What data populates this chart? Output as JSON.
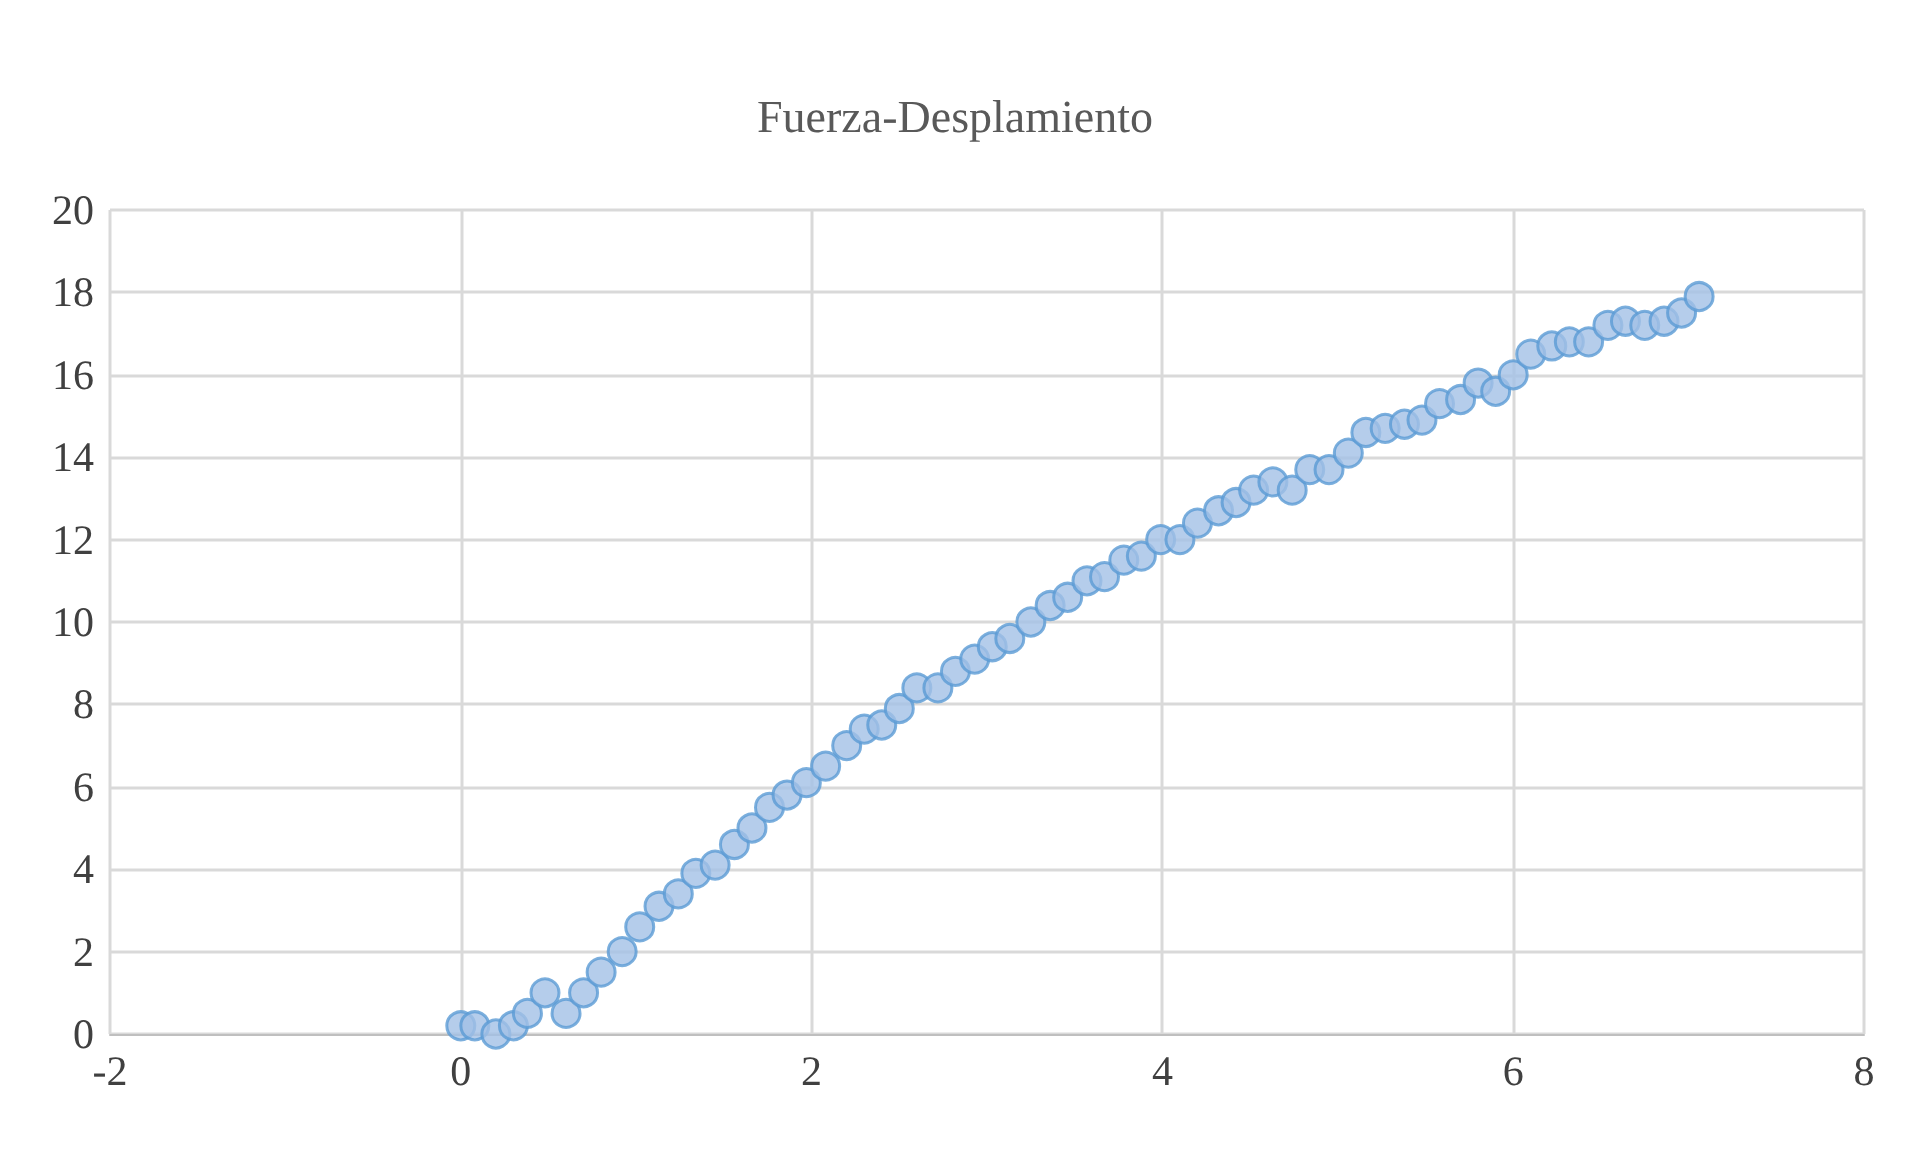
{
  "chart_data": {
    "type": "scatter",
    "title": "Fuerza-Desplamiento",
    "x": [
      0,
      0.08,
      0.2,
      0.3,
      0.38,
      0.48,
      0.6,
      0.7,
      0.8,
      0.92,
      1.02,
      1.13,
      1.24,
      1.34,
      1.45,
      1.56,
      1.66,
      1.76,
      1.86,
      1.97,
      2.08,
      2.2,
      2.3,
      2.4,
      2.5,
      2.6,
      2.72,
      2.82,
      2.93,
      3.03,
      3.13,
      3.25,
      3.36,
      3.46,
      3.57,
      3.67,
      3.78,
      3.88,
      3.99,
      4.1,
      4.2,
      4.32,
      4.42,
      4.52,
      4.63,
      4.74,
      4.84,
      4.95,
      5.06,
      5.16,
      5.27,
      5.38,
      5.48,
      5.58,
      5.7,
      5.8,
      5.9,
      6.0,
      6.1,
      6.22,
      6.32,
      6.43,
      6.54,
      6.64,
      6.75,
      6.86,
      6.96,
      7.06
    ],
    "values": [
      0.2,
      0.2,
      0,
      0.2,
      0.5,
      1.0,
      0.5,
      1.0,
      1.5,
      2.0,
      2.6,
      3.1,
      3.4,
      3.9,
      4.1,
      4.6,
      5.0,
      5.5,
      5.8,
      6.1,
      6.5,
      7.0,
      7.4,
      7.5,
      7.9,
      8.4,
      8.4,
      8.8,
      9.1,
      9.4,
      9.6,
      10.0,
      10.4,
      10.6,
      11.0,
      11.1,
      11.5,
      11.6,
      12.0,
      12.0,
      12.4,
      12.7,
      12.9,
      13.2,
      13.4,
      13.2,
      13.7,
      13.7,
      14.1,
      14.6,
      14.7,
      14.8,
      14.9,
      15.3,
      15.4,
      15.8,
      15.6,
      16.0,
      16.5,
      16.7,
      16.8,
      16.8,
      17.2,
      17.3,
      17.2,
      17.3,
      17.5,
      17.9
    ],
    "color": "#a3c0e6",
    "marker": "circle",
    "grid": true,
    "xlim": [
      -2,
      8
    ],
    "xticks": [
      -2,
      0,
      2,
      4,
      6,
      8
    ],
    "ylim": [
      0,
      20
    ],
    "yticks": [
      0,
      2,
      4,
      6,
      8,
      10,
      12,
      14,
      16,
      18,
      20
    ]
  }
}
